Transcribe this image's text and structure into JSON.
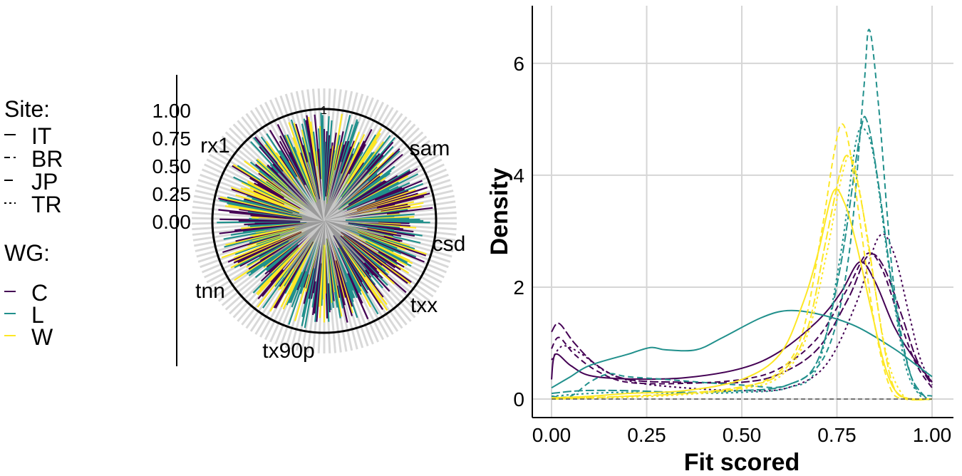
{
  "colors": {
    "C": "#440154",
    "L": "#21908C",
    "W": "#FDE725",
    "grid": "#d6d6d6",
    "background": "#ffffff"
  },
  "legend": {
    "site_title": "Site:",
    "site_items": [
      {
        "label": "IT",
        "linetype": "solid"
      },
      {
        "label": "BR",
        "linetype": "dashed"
      },
      {
        "label": "JP",
        "linetype": "longdash"
      },
      {
        "label": "TR",
        "linetype": "dotted"
      }
    ],
    "wg_title": "WG:",
    "wg_items": [
      {
        "label": "C",
        "color": "#440154"
      },
      {
        "label": "L",
        "color": "#21908C"
      },
      {
        "label": "W",
        "color": "#FDE725"
      }
    ]
  },
  "chart_data": [
    {
      "type": "radial_bar",
      "radial_ticks": [
        "1.00",
        "0.75",
        "0.50",
        "0.25",
        "0.00"
      ],
      "radial_tick_values": [
        1.0,
        0.75,
        0.5,
        0.25,
        0.0
      ],
      "reference_circle": 1,
      "reference_label": "1",
      "category_labels": [
        "sam",
        "csd",
        "txx",
        "tx90p",
        "tnn",
        "rx1"
      ],
      "category_angles_deg": [
        30,
        95,
        150,
        195,
        250,
        310
      ],
      "note_series": [
        "C",
        "L",
        "W"
      ]
    },
    {
      "type": "line",
      "kind": "density",
      "xlabel": "Fit scored",
      "ylabel": "Density",
      "xlim": [
        0,
        1
      ],
      "ylim": [
        0,
        6.8
      ],
      "x_ticks": [
        "0.00",
        "0.25",
        "0.50",
        "0.75",
        "1.00"
      ],
      "x_tick_values": [
        0,
        0.25,
        0.5,
        0.75,
        1.0
      ],
      "y_ticks": [
        "0",
        "2",
        "4",
        "6"
      ],
      "y_tick_values": [
        0,
        2,
        4,
        6
      ],
      "series": [
        {
          "wg": "C",
          "site": "IT",
          "points": [
            [
              0,
              0.35
            ],
            [
              0.01,
              0.8
            ],
            [
              0.05,
              0.6
            ],
            [
              0.1,
              0.42
            ],
            [
              0.2,
              0.36
            ],
            [
              0.35,
              0.38
            ],
            [
              0.5,
              0.55
            ],
            [
              0.6,
              0.85
            ],
            [
              0.7,
              1.4
            ],
            [
              0.76,
              1.9
            ],
            [
              0.81,
              2.45
            ],
            [
              0.85,
              2.1
            ],
            [
              0.9,
              1.3
            ],
            [
              0.95,
              0.75
            ],
            [
              1.0,
              0.3
            ]
          ]
        },
        {
          "wg": "C",
          "site": "BR",
          "points": [
            [
              0,
              0.9
            ],
            [
              0.02,
              1.1
            ],
            [
              0.06,
              0.8
            ],
            [
              0.12,
              0.5
            ],
            [
              0.2,
              0.3
            ],
            [
              0.35,
              0.28
            ],
            [
              0.5,
              0.35
            ],
            [
              0.6,
              0.55
            ],
            [
              0.7,
              1.1
            ],
            [
              0.78,
              2.0
            ],
            [
              0.83,
              2.6
            ],
            [
              0.87,
              2.3
            ],
            [
              0.92,
              1.3
            ],
            [
              0.96,
              0.6
            ],
            [
              1.0,
              0.2
            ]
          ]
        },
        {
          "wg": "C",
          "site": "JP",
          "points": [
            [
              0,
              1.2
            ],
            [
              0.02,
              1.35
            ],
            [
              0.06,
              1.0
            ],
            [
              0.12,
              0.6
            ],
            [
              0.2,
              0.35
            ],
            [
              0.35,
              0.3
            ],
            [
              0.5,
              0.3
            ],
            [
              0.6,
              0.45
            ],
            [
              0.7,
              0.9
            ],
            [
              0.78,
              1.8
            ],
            [
              0.83,
              2.55
            ],
            [
              0.87,
              2.4
            ],
            [
              0.92,
              1.5
            ],
            [
              0.96,
              0.7
            ],
            [
              1.0,
              0.25
            ]
          ]
        },
        {
          "wg": "C",
          "site": "TR",
          "points": [
            [
              0,
              0.7
            ],
            [
              0.03,
              0.95
            ],
            [
              0.08,
              0.8
            ],
            [
              0.14,
              0.5
            ],
            [
              0.22,
              0.3
            ],
            [
              0.35,
              0.2
            ],
            [
              0.5,
              0.15
            ],
            [
              0.62,
              0.2
            ],
            [
              0.72,
              0.6
            ],
            [
              0.8,
              1.7
            ],
            [
              0.86,
              2.9
            ],
            [
              0.9,
              2.6
            ],
            [
              0.94,
              1.5
            ],
            [
              0.97,
              0.7
            ],
            [
              1.0,
              0.3
            ]
          ]
        },
        {
          "wg": "L",
          "site": "IT",
          "points": [
            [
              0,
              0.2
            ],
            [
              0.05,
              0.4
            ],
            [
              0.1,
              0.6
            ],
            [
              0.2,
              0.8
            ],
            [
              0.26,
              0.92
            ],
            [
              0.3,
              0.88
            ],
            [
              0.38,
              0.88
            ],
            [
              0.45,
              1.1
            ],
            [
              0.55,
              1.45
            ],
            [
              0.62,
              1.58
            ],
            [
              0.7,
              1.52
            ],
            [
              0.8,
              1.3
            ],
            [
              0.9,
              0.9
            ],
            [
              0.96,
              0.6
            ],
            [
              1.0,
              0.4
            ]
          ]
        },
        {
          "wg": "L",
          "site": "BR",
          "points": [
            [
              0,
              0.05
            ],
            [
              0.05,
              0.05
            ],
            [
              0.1,
              0.3
            ],
            [
              0.15,
              0.45
            ],
            [
              0.2,
              0.4
            ],
            [
              0.3,
              0.35
            ],
            [
              0.5,
              0.25
            ],
            [
              0.62,
              0.25
            ],
            [
              0.72,
              0.8
            ],
            [
              0.78,
              2.5
            ],
            [
              0.82,
              5.5
            ],
            [
              0.835,
              6.6
            ],
            [
              0.86,
              5.2
            ],
            [
              0.9,
              2.0
            ],
            [
              0.95,
              0.3
            ],
            [
              1.0,
              0.05
            ]
          ]
        },
        {
          "wg": "L",
          "site": "JP",
          "points": [
            [
              0,
              0.1
            ],
            [
              0.08,
              0.15
            ],
            [
              0.2,
              0.15
            ],
            [
              0.35,
              0.12
            ],
            [
              0.5,
              0.15
            ],
            [
              0.62,
              0.25
            ],
            [
              0.7,
              0.7
            ],
            [
              0.76,
              2.4
            ],
            [
              0.81,
              4.7
            ],
            [
              0.83,
              4.95
            ],
            [
              0.86,
              3.8
            ],
            [
              0.9,
              1.8
            ],
            [
              0.94,
              0.5
            ],
            [
              0.98,
              0.05
            ],
            [
              1.0,
              0.0
            ]
          ]
        },
        {
          "wg": "L",
          "site": "TR",
          "points": [
            [
              0,
              0.05
            ],
            [
              0.1,
              0.1
            ],
            [
              0.2,
              0.12
            ],
            [
              0.35,
              0.1
            ],
            [
              0.5,
              0.12
            ],
            [
              0.62,
              0.2
            ],
            [
              0.7,
              0.6
            ],
            [
              0.76,
              2.6
            ],
            [
              0.8,
              4.6
            ],
            [
              0.825,
              4.8
            ],
            [
              0.85,
              4.2
            ],
            [
              0.89,
              2.2
            ],
            [
              0.93,
              0.6
            ],
            [
              0.97,
              0.05
            ],
            [
              1.0,
              0.0
            ]
          ]
        },
        {
          "wg": "W",
          "site": "IT",
          "points": [
            [
              0,
              0.02
            ],
            [
              0.1,
              0.05
            ],
            [
              0.2,
              0.1
            ],
            [
              0.35,
              0.15
            ],
            [
              0.5,
              0.35
            ],
            [
              0.6,
              0.8
            ],
            [
              0.66,
              1.7
            ],
            [
              0.7,
              2.6
            ],
            [
              0.74,
              3.7
            ],
            [
              0.77,
              3.5
            ],
            [
              0.8,
              2.8
            ],
            [
              0.84,
              1.6
            ],
            [
              0.88,
              0.5
            ],
            [
              0.92,
              0.05
            ],
            [
              1.0,
              0.0
            ]
          ]
        },
        {
          "wg": "W",
          "site": "BR",
          "points": [
            [
              0,
              0.0
            ],
            [
              0.2,
              0.05
            ],
            [
              0.35,
              0.1
            ],
            [
              0.5,
              0.2
            ],
            [
              0.6,
              0.5
            ],
            [
              0.66,
              1.2
            ],
            [
              0.71,
              3.0
            ],
            [
              0.74,
              4.3
            ],
            [
              0.76,
              4.9
            ],
            [
              0.78,
              4.6
            ],
            [
              0.81,
              3.2
            ],
            [
              0.85,
              1.3
            ],
            [
              0.89,
              0.2
            ],
            [
              0.93,
              0.0
            ],
            [
              1.0,
              0.0
            ]
          ]
        },
        {
          "wg": "W",
          "site": "JP",
          "points": [
            [
              0,
              0.0
            ],
            [
              0.2,
              0.05
            ],
            [
              0.35,
              0.1
            ],
            [
              0.5,
              0.22
            ],
            [
              0.6,
              0.45
            ],
            [
              0.67,
              1.2
            ],
            [
              0.72,
              2.8
            ],
            [
              0.76,
              4.1
            ],
            [
              0.78,
              4.35
            ],
            [
              0.8,
              4.0
            ],
            [
              0.83,
              2.9
            ],
            [
              0.87,
              1.1
            ],
            [
              0.9,
              0.2
            ],
            [
              0.94,
              0.0
            ],
            [
              1.0,
              0.0
            ]
          ]
        },
        {
          "wg": "W",
          "site": "TR",
          "points": [
            [
              0,
              0.0
            ],
            [
              0.2,
              0.03
            ],
            [
              0.35,
              0.08
            ],
            [
              0.5,
              0.18
            ],
            [
              0.6,
              0.4
            ],
            [
              0.67,
              1.1
            ],
            [
              0.72,
              2.5
            ],
            [
              0.76,
              3.9
            ],
            [
              0.785,
              4.35
            ],
            [
              0.81,
              3.7
            ],
            [
              0.84,
              2.4
            ],
            [
              0.88,
              0.8
            ],
            [
              0.92,
              0.1
            ],
            [
              0.96,
              0.0
            ],
            [
              1.0,
              0.0
            ]
          ]
        }
      ]
    }
  ]
}
